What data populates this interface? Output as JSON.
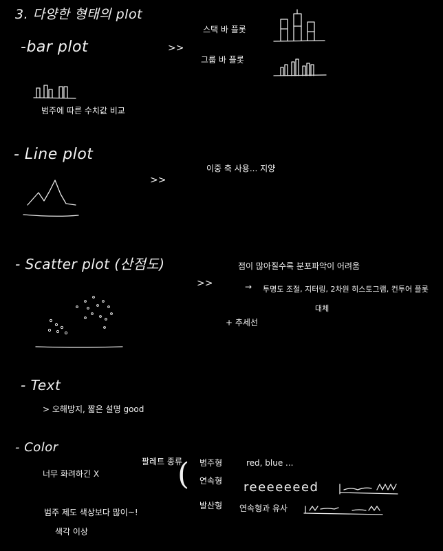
{
  "title": "3. 다양한 형태의 plot",
  "sections": {
    "bar": {
      "heading": "-bar plot",
      "arrow": ">>",
      "caption": "범주에 따른 수치값 비교",
      "notes": [
        "스택 바 플롯",
        "그룹 바 플롯"
      ]
    },
    "line": {
      "heading": "- Line plot",
      "arrow": ">>",
      "note": "이중 축 사용... 지양"
    },
    "scatter": {
      "heading": "- Scatter plot (산점도)",
      "arrow": ">>",
      "note1": "점이 많아질수록 분포파악이 어려움",
      "note2_arrow": "→",
      "note2": "투명도 조절, 지터링, 2차원 히스토그램, 컨투어 플롯",
      "note2_cont": "대체",
      "note3": "+ 추세선"
    },
    "text": {
      "heading": "- Text",
      "note": "> 오해방지, 짧은 설명 good"
    },
    "color": {
      "heading": "- Color",
      "note_left": "너무 화려하긴 X",
      "palette_label": "팔레트 종류",
      "bracket": "(",
      "palettes": [
        {
          "name": "범주형",
          "example": "red, blue ..."
        },
        {
          "name": "연속형",
          "example": "reeeeeeed"
        },
        {
          "name": "발산형",
          "example": "연속형과 유사"
        }
      ],
      "note_bottom1": "범주 제도 색상보다 많이~!",
      "note_bottom2": "색각 이상"
    }
  }
}
